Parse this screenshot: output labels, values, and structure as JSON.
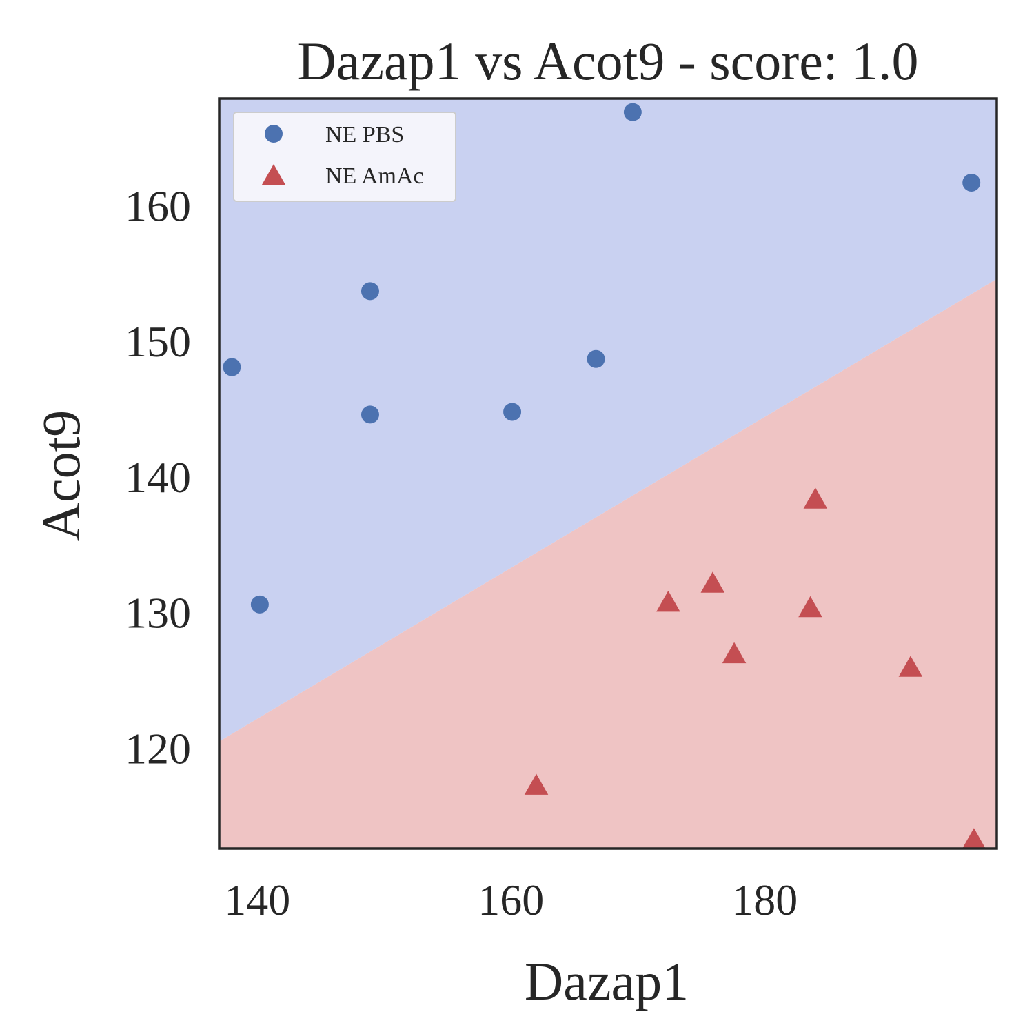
{
  "chart_data": {
    "type": "scatter",
    "title": "Dazap1 vs Acot9 - score: 1.0",
    "xlabel": "Dazap1",
    "ylabel": "Acot9",
    "xlim": [
      137,
      198.3
    ],
    "ylim": [
      112.6,
      167.9
    ],
    "xticks": [
      140,
      160,
      180
    ],
    "yticks": [
      120,
      130,
      140,
      150,
      160
    ],
    "grid": false,
    "legend_position": "top-left",
    "decision_boundary": {
      "description_points": [
        [
          137,
          120.5
        ],
        [
          198.3,
          154.6
        ]
      ],
      "upper_region_class": "NE PBS",
      "lower_region_class": "NE AmAc"
    },
    "series": [
      {
        "name": "NE PBS",
        "marker": "circle",
        "color": "#4c72b0",
        "region_color": "#c9d1f1",
        "points": [
          [
            138.0,
            148.1
          ],
          [
            140.2,
            130.6
          ],
          [
            148.9,
            153.7
          ],
          [
            148.9,
            144.6
          ],
          [
            160.1,
            144.8
          ],
          [
            166.7,
            148.7
          ],
          [
            169.6,
            166.9
          ],
          [
            196.3,
            161.7
          ]
        ]
      },
      {
        "name": "NE AmAc",
        "marker": "triangle",
        "color": "#c44e52",
        "region_color": "#efc4c4",
        "points": [
          [
            162.0,
            117.3
          ],
          [
            172.4,
            130.8
          ],
          [
            175.9,
            132.2
          ],
          [
            177.6,
            127.0
          ],
          [
            183.6,
            130.4
          ],
          [
            184.0,
            138.4
          ],
          [
            191.5,
            126.0
          ],
          [
            196.5,
            113.3
          ]
        ]
      }
    ]
  }
}
